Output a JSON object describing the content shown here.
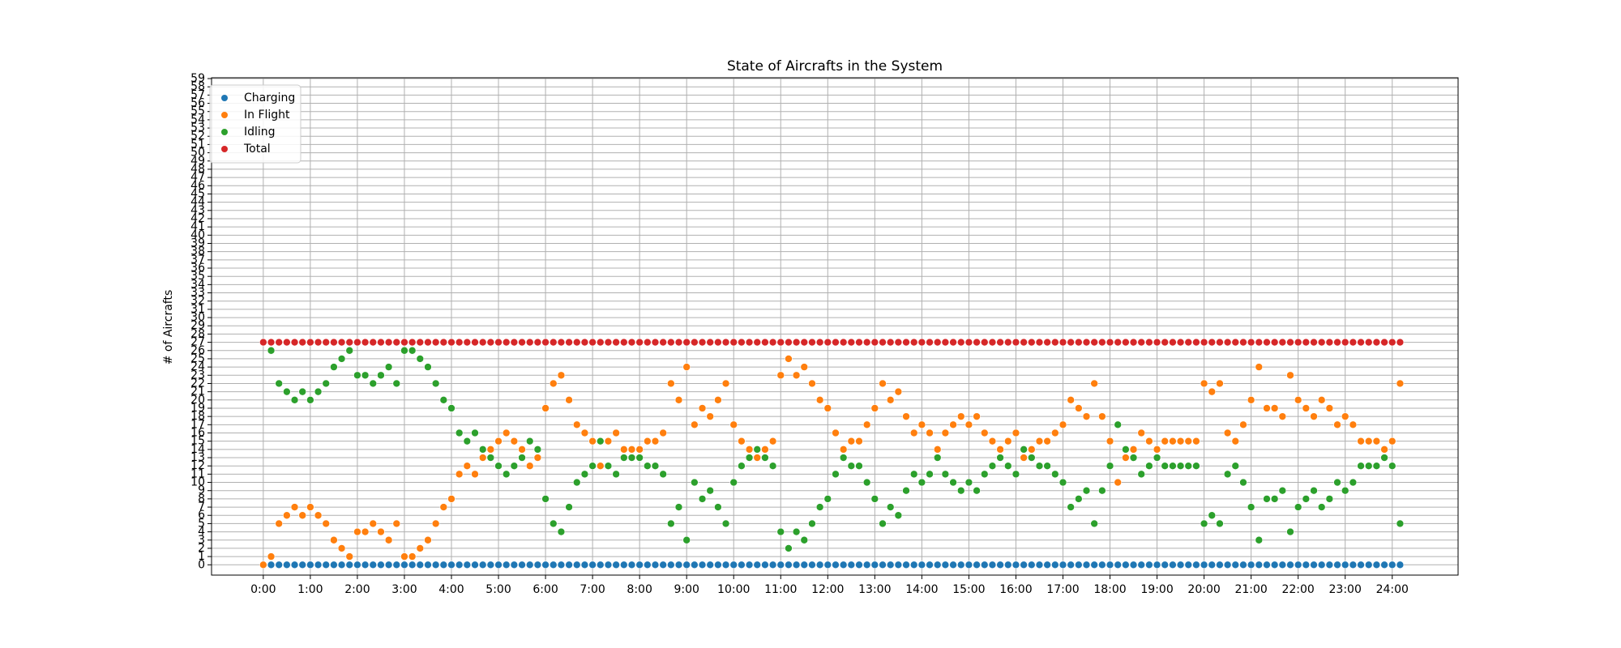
{
  "chart_data": {
    "type": "scatter",
    "title": "State of Aircrafts in the System",
    "y_label": "# of Aircrafts",
    "x": [
      0,
      10,
      20,
      30,
      40,
      50,
      60,
      70,
      80,
      90,
      100,
      110,
      120,
      130,
      140,
      150,
      160,
      170,
      180,
      190,
      200,
      210,
      220,
      230,
      240,
      250,
      260,
      270,
      280,
      290,
      300,
      310,
      320,
      330,
      340,
      350,
      360,
      370,
      380,
      390,
      400,
      410,
      420,
      430,
      440,
      450,
      460,
      470,
      480,
      490,
      500,
      510,
      520,
      530,
      540,
      550,
      560,
      570,
      580,
      590,
      600,
      610,
      620,
      630,
      640,
      650,
      660,
      670,
      680,
      690,
      700,
      710,
      720,
      730,
      740,
      750,
      760,
      770,
      780,
      790,
      800,
      810,
      820,
      830,
      840,
      850,
      860,
      870,
      880,
      890,
      900,
      910,
      920,
      930,
      940,
      950,
      960,
      970,
      980,
      990,
      1000,
      1010,
      1020,
      1030,
      1040,
      1050,
      1060,
      1070,
      1080,
      1090,
      1100,
      1110,
      1120,
      1130,
      1140,
      1150,
      1160,
      1170,
      1180,
      1190,
      1200,
      1210,
      1220,
      1230,
      1240,
      1250,
      1260,
      1270,
      1280,
      1290,
      1300,
      1310,
      1320,
      1330,
      1340,
      1350,
      1360,
      1370,
      1380,
      1390,
      1400,
      1410,
      1420,
      1430,
      1440,
      1450
    ],
    "series": [
      {
        "name": "Charging",
        "color": "#1f77b4",
        "values": [
          0,
          0,
          0,
          0,
          0,
          0,
          0,
          0,
          0,
          0,
          0,
          0,
          0,
          0,
          0,
          0,
          0,
          0,
          0,
          0,
          0,
          0,
          0,
          0,
          0,
          0,
          0,
          0,
          0,
          0,
          0,
          0,
          0,
          0,
          0,
          0,
          0,
          0,
          0,
          0,
          0,
          0,
          0,
          0,
          0,
          0,
          0,
          0,
          0,
          0,
          0,
          0,
          0,
          0,
          0,
          0,
          0,
          0,
          0,
          0,
          0,
          0,
          0,
          0,
          0,
          0,
          0,
          0,
          0,
          0,
          0,
          0,
          0,
          0,
          0,
          0,
          0,
          0,
          0,
          0,
          0,
          0,
          0,
          0,
          0,
          0,
          0,
          0,
          0,
          0,
          0,
          0,
          0,
          0,
          0,
          0,
          0,
          0,
          0,
          0,
          0,
          0,
          0,
          0,
          0,
          0,
          0,
          0,
          0,
          0,
          0,
          0,
          0,
          0,
          0,
          0,
          0,
          0,
          0,
          0,
          0,
          0,
          0,
          0,
          0,
          0,
          0,
          0,
          0,
          0,
          0,
          0,
          0,
          0,
          0,
          0,
          0,
          0,
          0,
          0,
          0,
          0,
          0,
          0,
          0,
          0
        ]
      },
      {
        "name": "In Flight",
        "color": "#ff7f0e",
        "values": [
          0,
          1,
          5,
          6,
          7,
          6,
          7,
          6,
          5,
          3,
          2,
          1,
          4,
          4,
          5,
          4,
          3,
          5,
          1,
          1,
          2,
          3,
          5,
          7,
          8,
          11,
          12,
          11,
          13,
          14,
          15,
          16,
          15,
          14,
          12,
          13,
          19,
          22,
          23,
          20,
          17,
          16,
          15,
          12,
          15,
          16,
          14,
          14,
          14,
          15,
          15,
          16,
          22,
          20,
          24,
          17,
          19,
          18,
          20,
          22,
          17,
          15,
          14,
          13,
          14,
          15,
          23,
          25,
          23,
          24,
          22,
          20,
          19,
          16,
          14,
          15,
          15,
          17,
          19,
          22,
          20,
          21,
          18,
          16,
          17,
          16,
          14,
          16,
          17,
          18,
          17,
          18,
          16,
          15,
          14,
          15,
          16,
          13,
          14,
          15,
          15,
          16,
          17,
          20,
          19,
          18,
          22,
          18,
          15,
          10,
          13,
          14,
          16,
          15,
          14,
          15,
          15,
          15,
          15,
          15,
          22,
          21,
          22,
          16,
          15,
          17,
          20,
          24,
          19,
          19,
          18,
          23,
          20,
          19,
          18,
          20,
          19,
          17,
          18,
          17,
          15,
          15,
          15,
          14,
          15,
          22
        ]
      },
      {
        "name": "Idling",
        "color": "#2ca02c",
        "values": [
          27,
          26,
          22,
          21,
          20,
          21,
          20,
          21,
          22,
          24,
          25,
          26,
          23,
          23,
          22,
          23,
          24,
          22,
          26,
          26,
          25,
          24,
          22,
          20,
          19,
          16,
          15,
          16,
          14,
          13,
          12,
          11,
          12,
          13,
          15,
          14,
          8,
          5,
          4,
          7,
          10,
          11,
          12,
          15,
          12,
          11,
          13,
          13,
          13,
          12,
          12,
          11,
          5,
          7,
          3,
          10,
          8,
          9,
          7,
          5,
          10,
          12,
          13,
          14,
          13,
          12,
          4,
          2,
          4,
          3,
          5,
          7,
          8,
          11,
          13,
          12,
          12,
          10,
          8,
          5,
          7,
          6,
          9,
          11,
          10,
          11,
          13,
          11,
          10,
          9,
          10,
          9,
          11,
          12,
          13,
          12,
          11,
          14,
          13,
          12,
          12,
          11,
          10,
          7,
          8,
          9,
          5,
          9,
          12,
          17,
          14,
          13,
          11,
          12,
          13,
          12,
          12,
          12,
          12,
          12,
          5,
          6,
          5,
          11,
          12,
          10,
          7,
          3,
          8,
          8,
          9,
          4,
          7,
          8,
          9,
          7,
          8,
          10,
          9,
          10,
          12,
          12,
          12,
          13,
          12,
          5
        ]
      },
      {
        "name": "Total",
        "color": "#d62728",
        "values": [
          27,
          27,
          27,
          27,
          27,
          27,
          27,
          27,
          27,
          27,
          27,
          27,
          27,
          27,
          27,
          27,
          27,
          27,
          27,
          27,
          27,
          27,
          27,
          27,
          27,
          27,
          27,
          27,
          27,
          27,
          27,
          27,
          27,
          27,
          27,
          27,
          27,
          27,
          27,
          27,
          27,
          27,
          27,
          27,
          27,
          27,
          27,
          27,
          27,
          27,
          27,
          27,
          27,
          27,
          27,
          27,
          27,
          27,
          27,
          27,
          27,
          27,
          27,
          27,
          27,
          27,
          27,
          27,
          27,
          27,
          27,
          27,
          27,
          27,
          27,
          27,
          27,
          27,
          27,
          27,
          27,
          27,
          27,
          27,
          27,
          27,
          27,
          27,
          27,
          27,
          27,
          27,
          27,
          27,
          27,
          27,
          27,
          27,
          27,
          27,
          27,
          27,
          27,
          27,
          27,
          27,
          27,
          27,
          27,
          27,
          27,
          27,
          27,
          27,
          27,
          27,
          27,
          27,
          27,
          27,
          27,
          27,
          27,
          27,
          27,
          27,
          27,
          27,
          27,
          27,
          27,
          27,
          27,
          27,
          27,
          27,
          27,
          27,
          27,
          27,
          27,
          27,
          27,
          27,
          27,
          27
        ]
      }
    ],
    "xlim": [
      -66,
      1524
    ],
    "xticks": [
      {
        "value": 0,
        "label": "0:00"
      },
      {
        "value": 60,
        "label": "1:00"
      },
      {
        "value": 120,
        "label": "2:00"
      },
      {
        "value": 180,
        "label": "3:00"
      },
      {
        "value": 240,
        "label": "4:00"
      },
      {
        "value": 300,
        "label": "5:00"
      },
      {
        "value": 360,
        "label": "6:00"
      },
      {
        "value": 420,
        "label": "7:00"
      },
      {
        "value": 480,
        "label": "8:00"
      },
      {
        "value": 540,
        "label": "9:00"
      },
      {
        "value": 600,
        "label": "10:00"
      },
      {
        "value": 660,
        "label": "11:00"
      },
      {
        "value": 720,
        "label": "12:00"
      },
      {
        "value": 780,
        "label": "13:00"
      },
      {
        "value": 840,
        "label": "14:00"
      },
      {
        "value": 900,
        "label": "15:00"
      },
      {
        "value": 960,
        "label": "16:00"
      },
      {
        "value": 1020,
        "label": "17:00"
      },
      {
        "value": 1080,
        "label": "18:00"
      },
      {
        "value": 1140,
        "label": "19:00"
      },
      {
        "value": 1200,
        "label": "20:00"
      },
      {
        "value": 1260,
        "label": "21:00"
      },
      {
        "value": 1320,
        "label": "22:00"
      },
      {
        "value": 1380,
        "label": "23:00"
      },
      {
        "value": 1440,
        "label": "24:00"
      }
    ],
    "ylim": [
      -1.25,
      59.1
    ],
    "yticks": [
      0,
      1,
      2,
      3,
      4,
      5,
      6,
      7,
      8,
      9,
      10,
      11,
      12,
      13,
      14,
      15,
      16,
      17,
      18,
      19,
      20,
      21,
      22,
      23,
      24,
      25,
      26,
      27,
      28,
      29,
      30,
      31,
      32,
      33,
      34,
      35,
      36,
      37,
      38,
      39,
      40,
      41,
      42,
      43,
      44,
      45,
      46,
      47,
      48,
      49,
      50,
      51,
      52,
      53,
      54,
      55,
      56,
      57,
      58,
      59
    ],
    "grid": true,
    "legend": "upper left"
  }
}
